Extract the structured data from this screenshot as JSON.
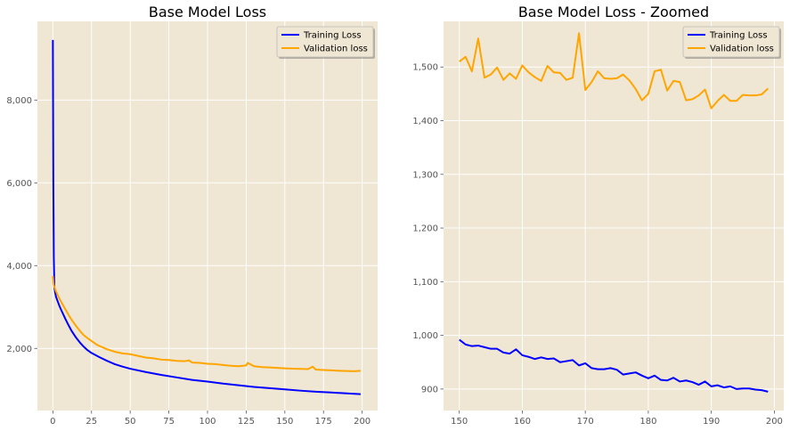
{
  "colors": {
    "background": "#efe6d3",
    "grid": "#ffffff",
    "training": "#0000ff",
    "validation": "#ffa500"
  },
  "chart_data": [
    {
      "type": "line",
      "title": "Base Model Loss",
      "xlabel": "",
      "ylabel": "",
      "xlim": [
        -10,
        210
      ],
      "ylim": [
        500,
        9900
      ],
      "xticks": [
        0,
        25,
        50,
        75,
        100,
        125,
        150,
        175,
        200
      ],
      "yticks": [
        2000,
        4000,
        6000,
        8000
      ],
      "xtick_labels": [
        "0",
        "25",
        "50",
        "75",
        "100",
        "125",
        "150",
        "175",
        "200"
      ],
      "ytick_labels": [
        "2,000",
        "4,000",
        "6,000",
        "8,000"
      ],
      "grid": true,
      "legend": "top-right",
      "series": [
        {
          "name": "Training Loss",
          "color": "#0000ff",
          "x": [
            0,
            0.3,
            0.6,
            1,
            2,
            3,
            4,
            5,
            6,
            8,
            10,
            12,
            15,
            18,
            20,
            22,
            25,
            28,
            30,
            35,
            40,
            45,
            50,
            60,
            70,
            80,
            90,
            100,
            110,
            120,
            130,
            140,
            150,
            160,
            170,
            180,
            190,
            199
          ],
          "values": [
            9450,
            6000,
            4200,
            3450,
            3250,
            3150,
            3050,
            2960,
            2880,
            2720,
            2570,
            2430,
            2260,
            2120,
            2040,
            1970,
            1890,
            1830,
            1790,
            1700,
            1620,
            1560,
            1510,
            1430,
            1360,
            1300,
            1240,
            1200,
            1150,
            1110,
            1070,
            1040,
            1010,
            980,
            955,
            935,
            915,
            895
          ]
        },
        {
          "name": "Validation loss",
          "color": "#ffa500",
          "x": [
            0,
            0.5,
            1,
            2,
            4,
            6,
            8,
            10,
            12,
            15,
            18,
            20,
            22,
            25,
            28,
            30,
            35,
            40,
            45,
            50,
            55,
            60,
            65,
            70,
            75,
            80,
            85,
            88,
            90,
            95,
            100,
            105,
            110,
            115,
            120,
            125,
            126,
            130,
            135,
            140,
            145,
            150,
            155,
            160,
            165,
            168,
            170,
            175,
            180,
            185,
            190,
            195,
            199
          ],
          "values": [
            3750,
            3550,
            3480,
            3380,
            3220,
            3080,
            2950,
            2820,
            2700,
            2540,
            2400,
            2320,
            2260,
            2180,
            2100,
            2060,
            1980,
            1920,
            1880,
            1860,
            1820,
            1780,
            1760,
            1730,
            1720,
            1700,
            1690,
            1710,
            1660,
            1650,
            1630,
            1620,
            1600,
            1580,
            1570,
            1590,
            1650,
            1570,
            1550,
            1540,
            1530,
            1520,
            1510,
            1505,
            1500,
            1560,
            1490,
            1480,
            1470,
            1460,
            1455,
            1450,
            1460
          ]
        }
      ]
    },
    {
      "type": "line",
      "title": "Base Model Loss - Zoomed",
      "xlabel": "",
      "ylabel": "",
      "xlim": [
        147.5,
        201.5
      ],
      "ylim": [
        860,
        1585
      ],
      "xticks": [
        150,
        160,
        170,
        180,
        190,
        200
      ],
      "yticks": [
        900,
        1000,
        1100,
        1200,
        1300,
        1400,
        1500
      ],
      "xtick_labels": [
        "150",
        "160",
        "170",
        "180",
        "190",
        "200"
      ],
      "ytick_labels": [
        "900",
        "1,000",
        "1,100",
        "1,200",
        "1,300",
        "1,400",
        "1,500"
      ],
      "grid": true,
      "legend": "top-right",
      "series": [
        {
          "name": "Training Loss",
          "color": "#0000ff",
          "x": [
            150,
            151,
            152,
            153,
            154,
            155,
            156,
            157,
            158,
            159,
            160,
            161,
            162,
            163,
            164,
            165,
            166,
            167,
            168,
            169,
            170,
            171,
            172,
            173,
            174,
            175,
            176,
            177,
            178,
            179,
            180,
            181,
            182,
            183,
            184,
            185,
            186,
            187,
            188,
            189,
            190,
            191,
            192,
            193,
            194,
            195,
            196,
            197,
            198,
            199
          ],
          "values": [
            992,
            983,
            980,
            981,
            978,
            975,
            975,
            968,
            966,
            974,
            963,
            960,
            956,
            959,
            956,
            957,
            950,
            952,
            954,
            944,
            948,
            939,
            937,
            937,
            939,
            936,
            927,
            929,
            931,
            925,
            920,
            925,
            917,
            916,
            921,
            914,
            916,
            913,
            908,
            914,
            905,
            907,
            903,
            905,
            900,
            901,
            901,
            899,
            898,
            895
          ]
        },
        {
          "name": "Validation loss",
          "color": "#ffa500",
          "x": [
            150,
            151,
            152,
            153,
            154,
            155,
            156,
            157,
            158,
            159,
            160,
            161,
            162,
            163,
            164,
            165,
            166,
            167,
            168,
            169,
            170,
            171,
            172,
            173,
            174,
            175,
            176,
            177,
            178,
            179,
            180,
            181,
            182,
            183,
            184,
            185,
            186,
            187,
            188,
            189,
            190,
            191,
            192,
            193,
            194,
            195,
            196,
            197,
            198,
            199
          ],
          "values": [
            1510,
            1519,
            1492,
            1553,
            1480,
            1486,
            1499,
            1476,
            1488,
            1478,
            1503,
            1490,
            1481,
            1474,
            1502,
            1490,
            1489,
            1476,
            1480,
            1563,
            1457,
            1472,
            1492,
            1479,
            1478,
            1479,
            1486,
            1475,
            1459,
            1438,
            1450,
            1492,
            1495,
            1456,
            1474,
            1472,
            1438,
            1440,
            1447,
            1458,
            1423,
            1437,
            1448,
            1437,
            1437,
            1448,
            1447,
            1447,
            1449,
            1460
          ]
        }
      ]
    }
  ]
}
